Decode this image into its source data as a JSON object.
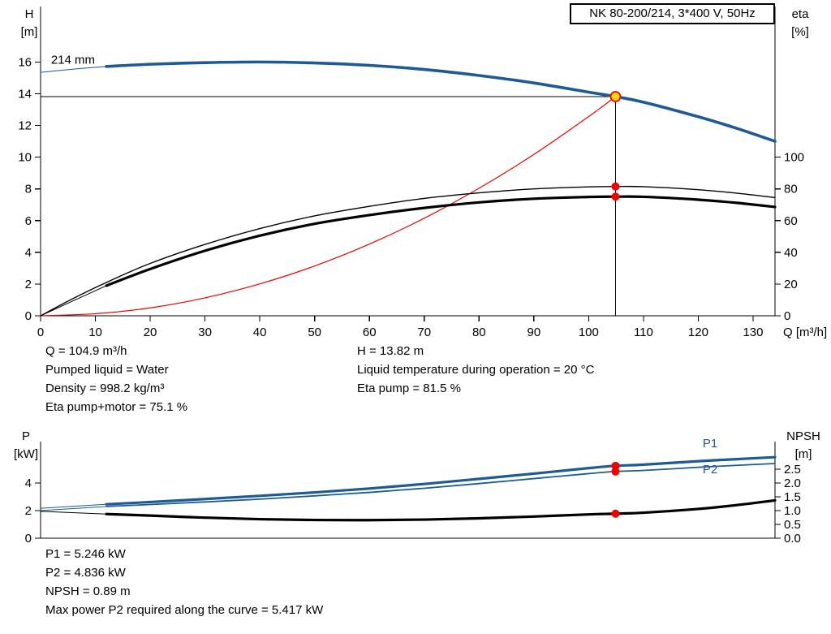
{
  "header": {
    "model_box": "NK 80-200/214, 3*400 V, 50Hz"
  },
  "colors": {
    "blue": "#1d5a96",
    "red": "#f40000",
    "black": "#000000",
    "yellow": "#ffd500"
  },
  "info_top": {
    "col1": [
      "Q = 104.9 m³/h",
      "Pumped liquid = Water",
      "Density = 998.2 kg/m³",
      "Eta pump+motor = 75.1 %"
    ],
    "col2": [
      "H = 13.82 m",
      "Liquid temperature during operation = 20 °C",
      "Eta pump = 81.5 %"
    ]
  },
  "info_bottom": {
    "lines": [
      "P1 = 5.246 kW",
      "P2 = 4.836 kW",
      "NPSH = 0.89 m",
      "Max power P2 required along the curve = 5.417 kW"
    ]
  },
  "chart_data": [
    {
      "id": "head-efficiency-chart",
      "type": "line",
      "title": "NK 80-200/214, 3*400 V, 50Hz",
      "xlabel": "Q [m³/h]",
      "ylabel_left": [
        "H",
        "[m]"
      ],
      "ylabel_right": [
        "eta",
        "[%]"
      ],
      "xlim": [
        0,
        134
      ],
      "ylim_left": [
        0,
        19.5
      ],
      "ylim_right": [
        0,
        195
      ],
      "xticks": [
        0,
        10,
        20,
        30,
        40,
        50,
        60,
        70,
        80,
        90,
        100,
        110,
        120,
        130
      ],
      "yticks_left": [
        0,
        2,
        4,
        6,
        8,
        10,
        12,
        14,
        16
      ],
      "yticks_right": [
        0,
        20,
        40,
        60,
        80,
        100
      ],
      "ytick_right_decimals": 0,
      "series": [
        {
          "name": "pump-curve-leadin",
          "color": "blue",
          "width": 1,
          "axis": "L",
          "points": [
            [
              0,
              15.35
            ],
            [
              6,
              15.55
            ],
            [
              12,
              15.72
            ]
          ]
        },
        {
          "name": "pump-curve-214mm",
          "color": "blue",
          "width": 3.6,
          "axis": "L",
          "points": [
            [
              12,
              15.72
            ],
            [
              20,
              15.86
            ],
            [
              30,
              15.96
            ],
            [
              40,
              16.0
            ],
            [
              50,
              15.94
            ],
            [
              60,
              15.79
            ],
            [
              70,
              15.53
            ],
            [
              80,
              15.15
            ],
            [
              90,
              14.68
            ],
            [
              100,
              14.1
            ],
            [
              104.9,
              13.82
            ],
            [
              110,
              13.47
            ],
            [
              120,
              12.55
            ],
            [
              127,
              11.82
            ],
            [
              134,
              11.0
            ]
          ]
        },
        {
          "name": "system-curve",
          "color": "red",
          "width": 1.2,
          "axis": "L",
          "points": [
            [
              0,
              0
            ],
            [
              10,
              0.13
            ],
            [
              20,
              0.5
            ],
            [
              30,
              1.13
            ],
            [
              40,
              2.01
            ],
            [
              50,
              3.14
            ],
            [
              60,
              4.52
            ],
            [
              70,
              6.15
            ],
            [
              80,
              8.04
            ],
            [
              90,
              10.17
            ],
            [
              100,
              12.56
            ],
            [
              104.9,
              13.82
            ]
          ]
        },
        {
          "name": "eta-pump-curve",
          "color": "black",
          "width": 1.4,
          "axis": "R",
          "points": [
            [
              0,
              0
            ],
            [
              6,
              11
            ],
            [
              12,
              21
            ],
            [
              20,
              33
            ],
            [
              30,
              45
            ],
            [
              40,
              55
            ],
            [
              50,
              63
            ],
            [
              60,
              69
            ],
            [
              70,
              74
            ],
            [
              80,
              77.5
            ],
            [
              90,
              80
            ],
            [
              100,
              81.3
            ],
            [
              104.9,
              81.5
            ],
            [
              110,
              81.4
            ],
            [
              120,
              79.5
            ],
            [
              127,
              77.3
            ],
            [
              134,
              74.5
            ]
          ]
        },
        {
          "name": "eta-pump-motor-leadin",
          "color": "black",
          "width": 1,
          "axis": "R",
          "points": [
            [
              0,
              0
            ],
            [
              6,
              9.5
            ],
            [
              12,
              19
            ]
          ]
        },
        {
          "name": "eta-pump-motor-curve",
          "color": "black",
          "width": 3.2,
          "axis": "R",
          "points": [
            [
              12,
              19
            ],
            [
              20,
              29.5
            ],
            [
              30,
              41
            ],
            [
              40,
              50.5
            ],
            [
              50,
              58
            ],
            [
              60,
              63.5
            ],
            [
              70,
              68
            ],
            [
              80,
              71.5
            ],
            [
              90,
              73.8
            ],
            [
              100,
              74.9
            ],
            [
              104.9,
              75.1
            ],
            [
              110,
              75
            ],
            [
              120,
              73.2
            ],
            [
              127,
              71.2
            ],
            [
              134,
              68.6
            ]
          ]
        }
      ],
      "crosshair": {
        "q": 104.9,
        "v": 13.82
      },
      "duty_point": {
        "q": 104.9,
        "h": 13.82
      },
      "dots": [
        {
          "q": 104.9,
          "v": 81.5,
          "axis": "R"
        },
        {
          "q": 104.9,
          "v": 75.1,
          "axis": "R"
        }
      ],
      "annotations": [
        {
          "text": "214 mm",
          "q": 1.9,
          "v": 15.9,
          "axis": "L",
          "color": "black"
        }
      ]
    },
    {
      "id": "power-npsh-chart",
      "type": "line",
      "title": "",
      "xlabel": "",
      "ylabel_left": [
        "P",
        "[kW]"
      ],
      "ylabel_right": [
        "NPSH",
        "[m]"
      ],
      "xlim": [
        0,
        134
      ],
      "ylim_left": [
        0,
        7
      ],
      "ylim_right": [
        0,
        3.5
      ],
      "xticks": [],
      "yticks_left": [
        0,
        2,
        4
      ],
      "yticks_right": [
        0,
        0.5,
        1,
        1.5,
        2,
        2.5
      ],
      "ytick_right_decimals": 1,
      "series": [
        {
          "name": "p1-curve-leadin",
          "color": "blue",
          "width": 1,
          "axis": "L",
          "points": [
            [
              0,
              2.17
            ],
            [
              12,
              2.46
            ]
          ]
        },
        {
          "name": "p1-curve",
          "color": "blue",
          "width": 3.2,
          "axis": "L",
          "points": [
            [
              12,
              2.46
            ],
            [
              20,
              2.62
            ],
            [
              30,
              2.84
            ],
            [
              40,
              3.07
            ],
            [
              50,
              3.32
            ],
            [
              60,
              3.6
            ],
            [
              70,
              3.93
            ],
            [
              80,
              4.3
            ],
            [
              90,
              4.68
            ],
            [
              100,
              5.08
            ],
            [
              104.9,
              5.246
            ],
            [
              110,
              5.33
            ],
            [
              120,
              5.58
            ],
            [
              127,
              5.73
            ],
            [
              134,
              5.87
            ]
          ]
        },
        {
          "name": "p2-curve-leadin",
          "color": "blue",
          "width": 1,
          "axis": "L",
          "points": [
            [
              0,
              2.0
            ],
            [
              12,
              2.3
            ]
          ]
        },
        {
          "name": "p2-curve",
          "color": "blue",
          "width": 1.8,
          "axis": "L",
          "points": [
            [
              12,
              2.3
            ],
            [
              20,
              2.44
            ],
            [
              30,
              2.63
            ],
            [
              40,
              2.83
            ],
            [
              50,
              3.07
            ],
            [
              60,
              3.32
            ],
            [
              70,
              3.62
            ],
            [
              80,
              3.96
            ],
            [
              90,
              4.32
            ],
            [
              100,
              4.68
            ],
            [
              104.9,
              4.836
            ],
            [
              110,
              4.91
            ],
            [
              120,
              5.14
            ],
            [
              127,
              5.28
            ],
            [
              134,
              5.41
            ]
          ]
        },
        {
          "name": "npsh-curve-leadin",
          "color": "black",
          "width": 1,
          "axis": "R",
          "points": [
            [
              0,
              0.975
            ],
            [
              12,
              0.875
            ]
          ]
        },
        {
          "name": "npsh-curve",
          "color": "black",
          "width": 3.2,
          "axis": "R",
          "points": [
            [
              12,
              0.875
            ],
            [
              20,
              0.82
            ],
            [
              30,
              0.745
            ],
            [
              40,
              0.69
            ],
            [
              50,
              0.66
            ],
            [
              60,
              0.655
            ],
            [
              70,
              0.675
            ],
            [
              80,
              0.72
            ],
            [
              90,
              0.785
            ],
            [
              100,
              0.862
            ],
            [
              104.9,
              0.89
            ],
            [
              110,
              0.925
            ],
            [
              120,
              1.06
            ],
            [
              127,
              1.2
            ],
            [
              134,
              1.37
            ]
          ]
        }
      ],
      "dots": [
        {
          "q": 104.9,
          "v": 5.246,
          "axis": "L"
        },
        {
          "q": 104.9,
          "v": 4.836,
          "axis": "L"
        },
        {
          "q": 104.9,
          "v": 0.89,
          "axis": "R"
        }
      ],
      "annotations": [
        {
          "text": "P1",
          "q": 120.8,
          "v": 6.6,
          "axis": "L",
          "color": "blue"
        },
        {
          "text": "P2",
          "q": 120.8,
          "v": 4.72,
          "axis": "L",
          "color": "blue"
        }
      ]
    }
  ]
}
